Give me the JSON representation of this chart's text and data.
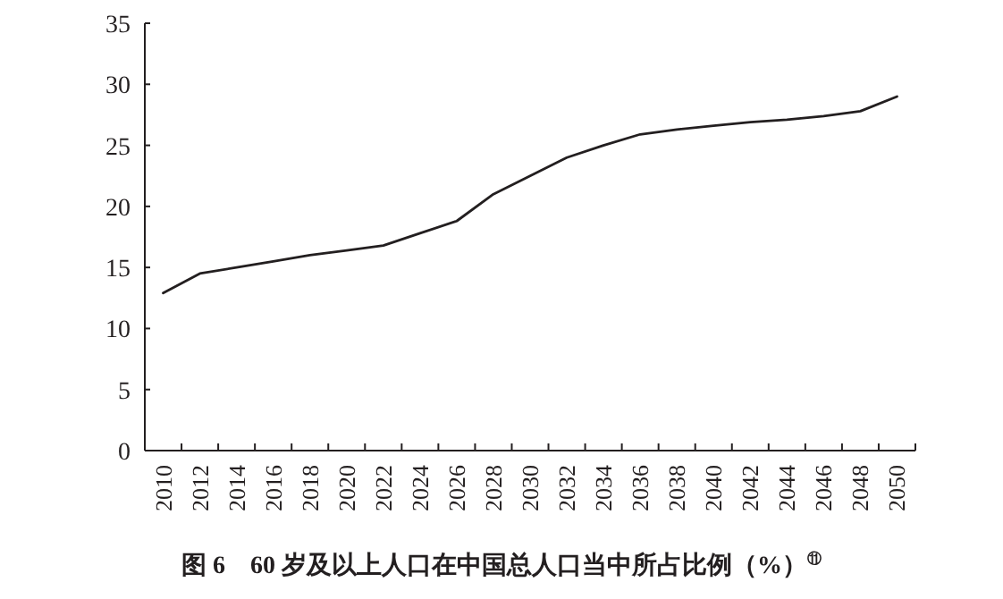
{
  "chart_data": {
    "type": "line",
    "title": "图 6　60 岁及以上人口在中国总人口当中所占比例（%）$^{⑪}$",
    "categories": [
      "2010",
      "2012",
      "2014",
      "2016",
      "2018",
      "2020",
      "2022",
      "2024",
      "2026",
      "2028",
      "2030",
      "2032",
      "2034",
      "2036",
      "2038",
      "2040",
      "2042",
      "2044",
      "2046",
      "2048",
      "2050"
    ],
    "series": [
      {
        "color": "#231f20",
        "values": [
          12.9,
          14.5,
          15.0,
          15.5,
          16.0,
          16.4,
          16.8,
          17.8,
          18.8,
          21.0,
          22.5,
          24.0,
          25.0,
          25.9,
          26.3,
          26.6,
          26.9,
          27.1,
          27.4,
          27.8,
          29.0
        ]
      }
    ],
    "ylim": [
      0,
      35
    ],
    "yticks": [
      0,
      5,
      10,
      15,
      20,
      25,
      30,
      35
    ],
    "grid": false,
    "marker": "none",
    "line_style": "solid"
  }
}
